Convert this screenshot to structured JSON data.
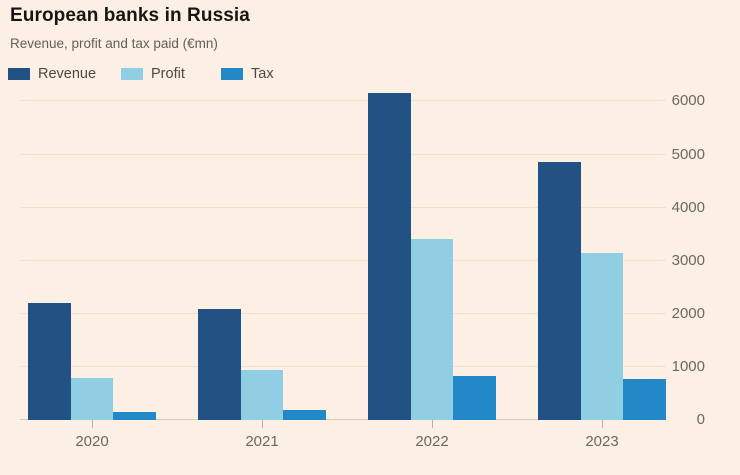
{
  "title": "European banks in Russia",
  "subtitle": "Revenue, profit and tax paid (€mn)",
  "legend": {
    "items": [
      {
        "label": "Revenue",
        "color": "#225283"
      },
      {
        "label": "Profit",
        "color": "#90CEE4"
      },
      {
        "label": "Tax",
        "color": "#2388C7"
      }
    ]
  },
  "colors": {
    "background": "#FCF0E4",
    "title": "#181615",
    "subtitle": "#655E58",
    "legend_text": "#4E4843",
    "axis_text": "#6F6760",
    "gridline": "#F0DFD2",
    "baseline": "#D6CCC2",
    "tick": "#B9AFA6"
  },
  "chart_data": {
    "type": "bar",
    "title": "European banks in Russia",
    "subtitle": "Revenue, profit and tax paid (€mn)",
    "categories": [
      "2020",
      "2021",
      "2022",
      "2023"
    ],
    "series": [
      {
        "name": "Revenue",
        "color": "#225283",
        "values": [
          2200,
          2100,
          6150,
          4850
        ]
      },
      {
        "name": "Profit",
        "color": "#90CEE4",
        "values": [
          800,
          950,
          3400,
          3150
        ]
      },
      {
        "name": "Tax",
        "color": "#2388C7",
        "values": [
          160,
          180,
          820,
          780
        ]
      }
    ],
    "xlabel": "",
    "ylabel": "",
    "ylim": [
      0,
      6400
    ],
    "yticks": [
      0,
      1000,
      2000,
      3000,
      4000,
      5000,
      6000
    ],
    "grid": true,
    "grid_axis": "y",
    "legend_position": "top-left",
    "y_axis_side": "right",
    "unit": "€mn"
  }
}
